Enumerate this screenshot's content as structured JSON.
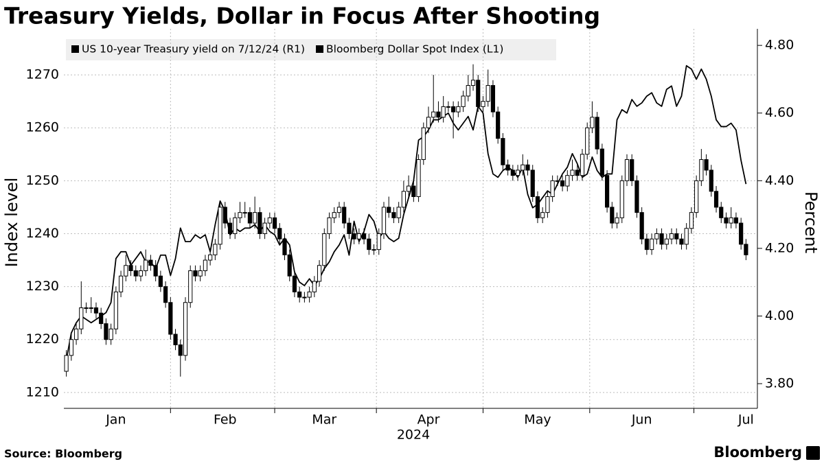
{
  "chart_data": {
    "type": "candlestick",
    "title": "Treasury Yields, Dollar in Focus After Shooting",
    "ylabel": "Index level",
    "y2label": "Percent",
    "xlabel": "2024",
    "source": "Source: Bloomberg",
    "brand": "Bloomberg",
    "categories": [
      null,
      null,
      null,
      null,
      null,
      null,
      null,
      null,
      null,
      null,
      "Jan",
      null,
      null,
      null,
      null,
      null,
      null,
      null,
      null,
      null,
      null,
      null,
      null,
      null,
      null,
      null,
      null,
      null,
      null,
      null,
      null,
      null,
      "Feb",
      null,
      null,
      null,
      null,
      null,
      null,
      null,
      null,
      null,
      null,
      null,
      null,
      null,
      null,
      null,
      null,
      null,
      null,
      null,
      "Mar",
      null,
      null,
      null,
      null,
      null,
      null,
      null,
      null,
      null,
      null,
      null,
      null,
      null,
      null,
      null,
      null,
      null,
      null,
      null,
      null,
      "Apr",
      null,
      null,
      null,
      null,
      null,
      null,
      null,
      null,
      null,
      null,
      null,
      null,
      null,
      null,
      null,
      null,
      null,
      null,
      null,
      null,
      null,
      "May",
      null,
      null,
      null,
      null,
      null,
      null,
      null,
      null,
      null,
      null,
      null,
      null,
      null,
      null,
      null,
      null,
      null,
      null,
      null,
      null,
      "Jun",
      null,
      null,
      null,
      null,
      null,
      null,
      null,
      null,
      null,
      null,
      null,
      null,
      null,
      null,
      null,
      null,
      null,
      null,
      null,
      null,
      "Jul"
    ],
    "ylim": [
      1207,
      1278.7
    ],
    "yticks": [
      1210,
      1220,
      1230,
      1240,
      1250,
      1260,
      1270
    ],
    "y2lim": [
      3.727,
      4.849
    ],
    "y2ticks": [
      {
        "value": 3.8,
        "label": "3.80"
      },
      {
        "value": 4.0,
        "label": "4.00"
      },
      {
        "value": 4.2,
        "label": "4.20"
      },
      {
        "value": 4.4,
        "label": "4.40"
      },
      {
        "value": 4.6,
        "label": "4.60"
      },
      {
        "value": 4.8,
        "label": "4.80"
      }
    ],
    "grid": true,
    "legend": "top-left",
    "series": [
      {
        "name": "US 10-year Treasury yield on 7/12/24 (R1)",
        "type": "line",
        "axis": "y2",
        "color": "#000000",
        "values": [
          3.87,
          3.95,
          3.98,
          4.0,
          3.99,
          3.98,
          3.99,
          4.0,
          4.01,
          4.04,
          4.17,
          4.19,
          4.19,
          4.15,
          4.17,
          4.19,
          4.16,
          4.16,
          4.14,
          4.18,
          4.18,
          4.12,
          4.17,
          4.26,
          4.22,
          4.22,
          4.24,
          4.23,
          4.24,
          4.19,
          4.27,
          4.34,
          4.31,
          4.24,
          4.26,
          4.25,
          4.26,
          4.26,
          4.27,
          4.25,
          4.27,
          4.25,
          4.24,
          4.21,
          4.23,
          4.21,
          4.13,
          4.1,
          4.09,
          4.11,
          4.09,
          4.11,
          4.14,
          4.16,
          4.19,
          4.21,
          4.24,
          4.18,
          4.28,
          4.22,
          4.25,
          4.3,
          4.28,
          4.23,
          4.25,
          4.23,
          4.22,
          4.23,
          4.3,
          4.35,
          4.4,
          4.52,
          4.53,
          4.55,
          4.58,
          4.58,
          4.59,
          4.6,
          4.57,
          4.55,
          4.57,
          4.59,
          4.55,
          4.62,
          4.6,
          4.48,
          4.42,
          4.41,
          4.43,
          4.44,
          4.43,
          4.41,
          4.44,
          4.36,
          4.32,
          4.33,
          4.35,
          4.37,
          4.36,
          4.39,
          4.42,
          4.44,
          4.48,
          4.45,
          4.41,
          4.42,
          4.47,
          4.43,
          4.41,
          4.42,
          4.42,
          4.58,
          4.61,
          4.6,
          4.64,
          4.62,
          4.63,
          4.65,
          4.66,
          4.63,
          4.62,
          4.67,
          4.68,
          4.62,
          4.65,
          4.74,
          4.73,
          4.7,
          4.73,
          4.7,
          4.65,
          4.58,
          4.56,
          4.56,
          4.57,
          4.55,
          4.46,
          4.39
        ]
      },
      {
        "name": "Bloomberg Dollar Spot Index (L1)",
        "type": "candlestick",
        "axis": "y",
        "color": "#000000",
        "up_color": "#ffffff",
        "down_color": "#000000",
        "open": [
          1214,
          1217,
          1220,
          1222,
          1226,
          1226,
          1226,
          1225,
          1223,
          1220,
          1222,
          1229,
          1232,
          1234,
          1233,
          1232,
          1233,
          1235,
          1234,
          1232,
          1230,
          1227,
          1221,
          1219,
          1217,
          1227,
          1233,
          1232,
          1233,
          1235,
          1236,
          1238,
          1245,
          1242,
          1240,
          1243,
          1244,
          1244,
          1242,
          1244,
          1240,
          1242,
          1243,
          1241,
          1239,
          1236,
          1232,
          1229,
          1228,
          1228,
          1229,
          1231,
          1234,
          1240,
          1243,
          1244,
          1245,
          1242,
          1240,
          1239,
          1240,
          1239,
          1237,
          1237,
          1240,
          1245,
          1244,
          1243,
          1245,
          1248,
          1249,
          1247,
          1254,
          1260,
          1262,
          1263,
          1262,
          1264,
          1264,
          1263,
          1264,
          1266,
          1268,
          1269,
          1264,
          1265,
          1268,
          1263,
          1258,
          1253,
          1252,
          1251,
          1252,
          1253,
          1252,
          1247,
          1243,
          1244,
          1247,
          1250,
          1250,
          1249,
          1251,
          1252,
          1251,
          1255,
          1260,
          1262,
          1256,
          1251,
          1245,
          1242,
          1243,
          1250,
          1254,
          1250,
          1244,
          1239,
          1237,
          1239,
          1240,
          1238,
          1239,
          1240,
          1239,
          1238,
          1241,
          1244,
          1250,
          1254,
          1252,
          1248,
          1245,
          1243,
          1242,
          1243,
          1242,
          1238
        ],
        "high": [
          1218,
          1221,
          1223,
          1231,
          1227,
          1228,
          1227,
          1226,
          1224,
          1223,
          1230,
          1233,
          1236,
          1235,
          1234,
          1234,
          1237,
          1236,
          1235,
          1233,
          1231,
          1228,
          1222,
          1220,
          1228,
          1234,
          1234,
          1234,
          1236,
          1237,
          1239,
          1246,
          1246,
          1243,
          1244,
          1246,
          1246,
          1245,
          1247,
          1245,
          1243,
          1244,
          1244,
          1242,
          1240,
          1237,
          1233,
          1230,
          1229,
          1230,
          1232,
          1235,
          1241,
          1244,
          1245,
          1246,
          1246,
          1243,
          1241,
          1241,
          1241,
          1240,
          1238,
          1241,
          1246,
          1247,
          1245,
          1246,
          1250,
          1251,
          1250,
          1255,
          1261,
          1264,
          1270,
          1265,
          1266,
          1265,
          1265,
          1265,
          1267,
          1270,
          1272,
          1270,
          1266,
          1271,
          1269,
          1264,
          1259,
          1254,
          1253,
          1253,
          1255,
          1254,
          1253,
          1248,
          1245,
          1248,
          1251,
          1251,
          1251,
          1252,
          1254,
          1253,
          1256,
          1261,
          1265,
          1263,
          1257,
          1252,
          1246,
          1244,
          1251,
          1255,
          1255,
          1251,
          1245,
          1240,
          1240,
          1241,
          1241,
          1240,
          1241,
          1241,
          1240,
          1242,
          1245,
          1251,
          1256,
          1255,
          1253,
          1249,
          1246,
          1244,
          1245,
          1244,
          1243,
          1239
        ],
        "low": [
          1213,
          1216,
          1219,
          1221,
          1225,
          1225,
          1224,
          1222,
          1219,
          1219,
          1221,
          1228,
          1231,
          1232,
          1231,
          1231,
          1232,
          1233,
          1231,
          1229,
          1226,
          1220,
          1218,
          1213,
          1216,
          1226,
          1231,
          1231,
          1232,
          1234,
          1235,
          1237,
          1241,
          1239,
          1239,
          1242,
          1243,
          1241,
          1241,
          1239,
          1239,
          1241,
          1240,
          1238,
          1235,
          1231,
          1228,
          1227,
          1227,
          1227,
          1228,
          1230,
          1233,
          1239,
          1242,
          1243,
          1241,
          1239,
          1238,
          1238,
          1238,
          1236,
          1236,
          1236,
          1239,
          1243,
          1242,
          1242,
          1244,
          1247,
          1246,
          1246,
          1253,
          1259,
          1261,
          1261,
          1261,
          1263,
          1258,
          1262,
          1263,
          1265,
          1267,
          1263,
          1263,
          1264,
          1262,
          1257,
          1252,
          1251,
          1250,
          1250,
          1251,
          1251,
          1246,
          1242,
          1242,
          1243,
          1246,
          1249,
          1248,
          1248,
          1250,
          1250,
          1250,
          1254,
          1259,
          1255,
          1250,
          1244,
          1241,
          1241,
          1242,
          1249,
          1249,
          1243,
          1238,
          1236,
          1236,
          1238,
          1237,
          1237,
          1238,
          1238,
          1237,
          1237,
          1240,
          1243,
          1249,
          1251,
          1247,
          1244,
          1242,
          1241,
          1241,
          1241,
          1237,
          1235
        ],
        "close": [
          1217,
          1220,
          1222,
          1226,
          1226,
          1226,
          1225,
          1223,
          1220,
          1222,
          1229,
          1232,
          1234,
          1233,
          1232,
          1233,
          1235,
          1234,
          1232,
          1230,
          1227,
          1221,
          1219,
          1217,
          1227,
          1233,
          1232,
          1233,
          1235,
          1236,
          1238,
          1245,
          1242,
          1240,
          1243,
          1244,
          1244,
          1242,
          1244,
          1240,
          1242,
          1243,
          1241,
          1239,
          1236,
          1232,
          1229,
          1228,
          1228,
          1229,
          1231,
          1234,
          1240,
          1243,
          1244,
          1245,
          1242,
          1240,
          1239,
          1240,
          1239,
          1237,
          1237,
          1240,
          1245,
          1244,
          1243,
          1245,
          1248,
          1249,
          1247,
          1254,
          1260,
          1262,
          1263,
          1262,
          1264,
          1264,
          1263,
          1264,
          1266,
          1268,
          1269,
          1264,
          1265,
          1268,
          1263,
          1258,
          1253,
          1252,
          1251,
          1252,
          1253,
          1252,
          1247,
          1243,
          1244,
          1247,
          1250,
          1250,
          1249,
          1251,
          1252,
          1251,
          1255,
          1260,
          1262,
          1256,
          1251,
          1245,
          1242,
          1243,
          1250,
          1254,
          1250,
          1244,
          1239,
          1237,
          1239,
          1240,
          1238,
          1239,
          1240,
          1239,
          1238,
          1241,
          1244,
          1250,
          1254,
          1252,
          1248,
          1245,
          1243,
          1242,
          1243,
          1242,
          1238,
          1236
        ]
      }
    ]
  }
}
